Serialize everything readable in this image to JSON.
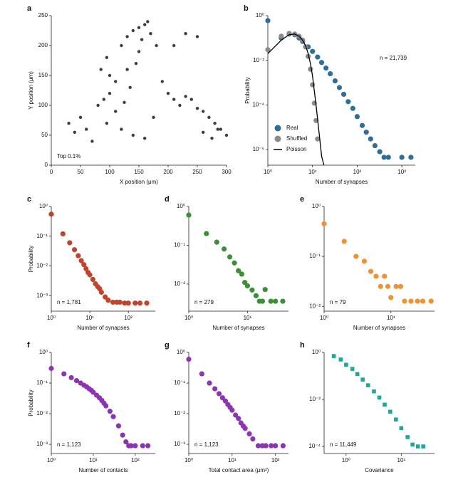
{
  "chart_data": [
    {
      "panel": "a",
      "type": "scatter",
      "xlabel": "X position (μm)",
      "ylabel": "Y position (μm)",
      "annotation": "Top 0.1%",
      "xscale": "linear",
      "yscale": "linear",
      "xlim": [
        0,
        300
      ],
      "ylim": [
        0,
        250
      ],
      "xticks": [
        0,
        50,
        100,
        150,
        200,
        250,
        300
      ],
      "yticks": [
        0,
        50,
        100,
        150,
        200,
        250
      ],
      "series": [
        {
          "color": "#3d3d3d",
          "marker": "circle",
          "x": [
            85,
            95,
            100,
            110,
            120,
            130,
            140,
            150,
            155,
            160,
            170,
            180,
            190,
            200,
            210,
            220,
            230,
            240,
            250,
            260,
            270,
            280,
            290,
            100,
            110,
            90,
            80,
            95,
            120,
            140,
            160,
            175,
            60,
            50,
            40,
            30,
            70,
            130,
            150,
            165,
            145,
            135,
            125,
            260,
            275,
            285,
            300,
            210,
            230,
            250
          ],
          "y": [
            160,
            180,
            150,
            140,
            200,
            215,
            225,
            230,
            210,
            235,
            220,
            200,
            140,
            120,
            110,
            100,
            115,
            110,
            95,
            90,
            80,
            70,
            60,
            120,
            90,
            110,
            100,
            70,
            60,
            50,
            45,
            80,
            60,
            80,
            55,
            70,
            40,
            160,
            190,
            240,
            170,
            130,
            105,
            55,
            45,
            60,
            50,
            200,
            220,
            215
          ]
        }
      ]
    },
    {
      "panel": "b",
      "type": "scatter",
      "xlabel": "Number of synapses",
      "ylabel": "Probability",
      "annotation": "n = 21,739",
      "legend": "lower left",
      "xscale": "log",
      "yscale": "log",
      "xlim": [
        1,
        2000
      ],
      "ylim": [
        2e-07,
        1
      ],
      "xticks": [
        {
          "value": 1,
          "label": "10⁰"
        },
        {
          "value": 10,
          "label": "10¹"
        },
        {
          "value": 100,
          "label": "10²"
        },
        {
          "value": 1000,
          "label": "10³"
        }
      ],
      "yticks": [
        {
          "value": 1,
          "label": "10⁰"
        },
        {
          "value": 0.01,
          "label": "10⁻²"
        },
        {
          "value": 0.0001,
          "label": "10⁻⁴"
        },
        {
          "value": 1e-06,
          "label": "10⁻⁶"
        }
      ],
      "series": [
        {
          "name": "Real",
          "color": "#2f6e9a",
          "marker": "circle",
          "x": [
            1,
            2,
            3,
            4,
            5,
            6,
            8,
            10,
            13,
            16,
            20,
            25,
            32,
            40,
            50,
            63,
            80,
            100,
            130,
            160,
            200,
            250,
            320,
            400,
            500,
            1000,
            1600
          ],
          "y": [
            0.6,
            0.1,
            0.15,
            0.14,
            0.1,
            0.07,
            0.04,
            0.025,
            0.014,
            0.008,
            0.0045,
            0.0025,
            0.0012,
            0.0006,
            0.0003,
            0.00014,
            7e-05,
            3e-05,
            1.2e-05,
            6e-06,
            3e-06,
            1.5e-06,
            8e-07,
            4.5e-07,
            4.5e-07,
            4.5e-07,
            4.5e-07
          ]
        },
        {
          "name": "Shuffled",
          "color": "#8a8a8a",
          "marker": "circle",
          "x": [
            1,
            2,
            3,
            4,
            5,
            6,
            7,
            8,
            9,
            10,
            11,
            12,
            13
          ],
          "y": [
            0.03,
            0.12,
            0.16,
            0.15,
            0.12,
            0.08,
            0.04,
            0.015,
            0.004,
            0.0008,
            0.00012,
            2e-05,
            3e-06
          ]
        },
        {
          "name": "Poisson",
          "color": "#000000",
          "marker": "line",
          "x": [
            1,
            2,
            3,
            4,
            5,
            6,
            7,
            8,
            9,
            10,
            12,
            14,
            16,
            18
          ],
          "y": [
            0.02,
            0.08,
            0.14,
            0.15,
            0.12,
            0.08,
            0.045,
            0.02,
            0.007,
            0.002,
            0.0001,
            6e-06,
            5e-07,
            2e-07
          ]
        }
      ]
    },
    {
      "panel": "c",
      "type": "scatter",
      "xlabel": "Number of synapses",
      "ylabel": "Probability",
      "annotation": "n = 1,781",
      "xscale": "log",
      "yscale": "log",
      "xlim": [
        1,
        500
      ],
      "ylim": [
        0.0003,
        1
      ],
      "xticks": [
        {
          "value": 1,
          "label": "10⁰"
        },
        {
          "value": 10,
          "label": "10¹"
        },
        {
          "value": 100,
          "label": "10²"
        }
      ],
      "yticks": [
        {
          "value": 1,
          "label": "10⁰"
        },
        {
          "value": 0.1,
          "label": "10⁻¹"
        },
        {
          "value": 0.01,
          "label": "10⁻²"
        },
        {
          "value": 0.001,
          "label": "10⁻³"
        }
      ],
      "series": [
        {
          "color": "#c0442c",
          "marker": "circle",
          "x": [
            1,
            2,
            3,
            4,
            5,
            6,
            7,
            8,
            9,
            10,
            12,
            14,
            16,
            18,
            20,
            25,
            30,
            40,
            50,
            60,
            80,
            100,
            150,
            200,
            300
          ],
          "y": [
            0.55,
            0.12,
            0.06,
            0.035,
            0.022,
            0.015,
            0.011,
            0.008,
            0.006,
            0.005,
            0.0035,
            0.0025,
            0.002,
            0.0017,
            0.0013,
            0.0009,
            0.0007,
            0.0006,
            0.0006,
            0.0006,
            0.00056,
            0.00056,
            0.00056,
            0.00056,
            0.00056
          ]
        }
      ]
    },
    {
      "panel": "d",
      "type": "scatter",
      "xlabel": "Number of synapses",
      "ylabel": "",
      "annotation": "n = 279",
      "xscale": "log",
      "yscale": "log",
      "xlim": [
        1,
        50
      ],
      "ylim": [
        0.002,
        1
      ],
      "xticks": [
        {
          "value": 1,
          "label": "10⁰"
        },
        {
          "value": 10,
          "label": "10¹"
        }
      ],
      "yticks": [
        {
          "value": 1,
          "label": "10⁰"
        },
        {
          "value": 0.1,
          "label": "10⁻¹"
        },
        {
          "value": 0.01,
          "label": "10⁻²"
        }
      ],
      "series": [
        {
          "color": "#3b8f34",
          "marker": "circle",
          "x": [
            1,
            2,
            3,
            4,
            5,
            6,
            7,
            8,
            9,
            10,
            12,
            14,
            16,
            18,
            20,
            25,
            30,
            40
          ],
          "y": [
            0.6,
            0.2,
            0.12,
            0.08,
            0.05,
            0.035,
            0.022,
            0.018,
            0.011,
            0.009,
            0.007,
            0.005,
            0.0036,
            0.0036,
            0.0072,
            0.0036,
            0.0036,
            0.0036
          ]
        }
      ]
    },
    {
      "panel": "e",
      "type": "scatter",
      "xlabel": "Number of synapses",
      "ylabel": "",
      "annotation": "n = 79",
      "xscale": "log",
      "yscale": "log",
      "xlim": [
        1,
        45
      ],
      "ylim": [
        0.008,
        1
      ],
      "xticks": [
        {
          "value": 1,
          "label": "10⁰"
        },
        {
          "value": 10,
          "label": "10¹"
        }
      ],
      "yticks": [
        {
          "value": 1,
          "label": "10⁰"
        },
        {
          "value": 0.1,
          "label": "10⁻¹"
        },
        {
          "value": 0.01,
          "label": "10⁻²"
        }
      ],
      "series": [
        {
          "color": "#ee9236",
          "marker": "circle",
          "x": [
            1,
            2,
            3,
            4,
            5,
            6,
            7,
            8,
            9,
            10,
            12,
            14,
            16,
            20,
            25,
            30,
            40
          ],
          "y": [
            0.45,
            0.2,
            0.1,
            0.08,
            0.05,
            0.04,
            0.025,
            0.04,
            0.025,
            0.015,
            0.025,
            0.025,
            0.0127,
            0.0127,
            0.0127,
            0.0127,
            0.0127
          ]
        }
      ]
    },
    {
      "panel": "f",
      "type": "scatter",
      "xlabel": "Number of contacts",
      "ylabel": "Probability",
      "annotation": "n = 1,123",
      "xscale": "log",
      "yscale": "log",
      "xlim": [
        1,
        300
      ],
      "ylim": [
        0.0005,
        1
      ],
      "xticks": [
        {
          "value": 1,
          "label": "10⁰"
        },
        {
          "value": 10,
          "label": "10¹"
        },
        {
          "value": 100,
          "label": "10²"
        }
      ],
      "yticks": [
        {
          "value": 1,
          "label": "10⁰"
        },
        {
          "value": 0.1,
          "label": "10⁻¹"
        },
        {
          "value": 0.01,
          "label": "10⁻²"
        },
        {
          "value": 0.001,
          "label": "10⁻³"
        }
      ],
      "series": [
        {
          "color": "#8c35b0",
          "marker": "circle",
          "x": [
            1,
            2,
            3,
            4,
            5,
            6,
            7,
            8,
            9,
            10,
            12,
            14,
            16,
            18,
            20,
            25,
            30,
            40,
            50,
            60,
            70,
            80,
            100,
            150,
            200
          ],
          "y": [
            0.3,
            0.2,
            0.15,
            0.12,
            0.1,
            0.085,
            0.075,
            0.065,
            0.058,
            0.05,
            0.04,
            0.033,
            0.027,
            0.022,
            0.018,
            0.012,
            0.008,
            0.004,
            0.002,
            0.0012,
            0.0009,
            0.0009,
            0.0009,
            0.0009,
            0.0009
          ]
        }
      ]
    },
    {
      "panel": "g",
      "type": "scatter",
      "xlabel": "Total contact area (μm²)",
      "ylabel": "",
      "annotation": "n = 1,123",
      "xscale": "log",
      "yscale": "log",
      "xlim": [
        1,
        200
      ],
      "ylim": [
        0.0005,
        1
      ],
      "xticks": [
        {
          "value": 1,
          "label": "10⁰"
        },
        {
          "value": 10,
          "label": "10¹"
        },
        {
          "value": 100,
          "label": "10²"
        }
      ],
      "yticks": [
        {
          "value": 1,
          "label": "10⁰"
        },
        {
          "value": 0.1,
          "label": "10⁻¹"
        },
        {
          "value": 0.01,
          "label": "10⁻²"
        },
        {
          "value": 0.001,
          "label": "10⁻³"
        }
      ],
      "series": [
        {
          "color": "#8c35b0",
          "marker": "circle",
          "x": [
            1,
            2,
            3,
            4,
            5,
            6,
            7,
            8,
            9,
            10,
            12,
            14,
            16,
            18,
            20,
            25,
            30,
            40,
            50,
            60,
            80,
            100,
            150
          ],
          "y": [
            0.6,
            0.2,
            0.1,
            0.065,
            0.045,
            0.033,
            0.026,
            0.02,
            0.016,
            0.013,
            0.009,
            0.007,
            0.005,
            0.004,
            0.0033,
            0.0022,
            0.0015,
            0.0009,
            0.0009,
            0.0009,
            0.0009,
            0.0009,
            0.0009
          ]
        }
      ]
    },
    {
      "panel": "h",
      "type": "scatter",
      "xlabel": "Covariance",
      "ylabel": "",
      "annotation": "n = 11,449",
      "xscale": "log",
      "yscale": "log",
      "xlim": [
        0.4,
        40
      ],
      "ylim": [
        5e-05,
        1
      ],
      "xticks": [
        {
          "value": 1,
          "label": "10⁰"
        },
        {
          "value": 10,
          "label": "10¹"
        }
      ],
      "yticks": [
        {
          "value": 1,
          "label": "10⁰"
        },
        {
          "value": 0.01,
          "label": "10⁻²"
        },
        {
          "value": 0.0001,
          "label": "10⁻⁴"
        }
      ],
      "series": [
        {
          "color": "#1fa89a",
          "marker": "square",
          "x": [
            0.6,
            0.8,
            1,
            1.3,
            1.6,
            2,
            2.5,
            3.2,
            4,
            5,
            6.3,
            8,
            10,
            13,
            16,
            20,
            25
          ],
          "y": [
            0.7,
            0.5,
            0.3,
            0.2,
            0.12,
            0.07,
            0.04,
            0.022,
            0.012,
            0.006,
            0.003,
            0.0014,
            0.0006,
            0.00025,
            0.00012,
            0.0001,
            0.0001
          ]
        }
      ]
    }
  ]
}
